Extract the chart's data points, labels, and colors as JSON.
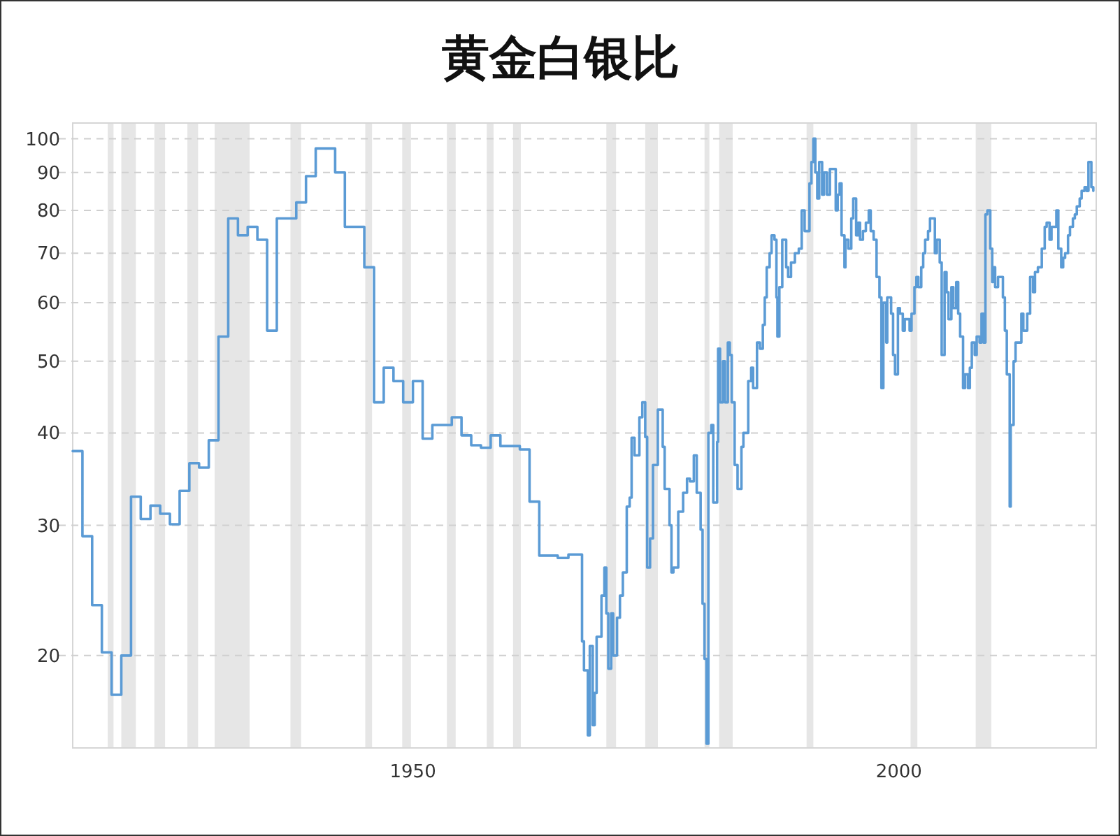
{
  "chart_data": {
    "type": "step",
    "title": "黄金白银比",
    "log": "y",
    "grid": "y",
    "xlim": [
      1915,
      2020.3
    ],
    "xticks": [
      1950,
      2000
    ],
    "ylim": [
      15,
      105
    ],
    "yticks": [
      20,
      30,
      40,
      50,
      60,
      70,
      80,
      90,
      100
    ],
    "color": "#5b9bd5",
    "x": [
      1915,
      1916,
      1917,
      1918,
      1919,
      1920,
      1921,
      1922,
      1923,
      1924,
      1925,
      1926,
      1927,
      1928,
      1929,
      1930,
      1931,
      1932,
      1933,
      1934,
      1935,
      1936,
      1938,
      1939,
      1940,
      1942,
      1943,
      1945,
      1946,
      1947,
      1948,
      1949,
      1950,
      1951,
      1952,
      1953,
      1954,
      1955,
      1956,
      1957,
      1958,
      1959,
      1961,
      1962,
      1963,
      1964.9,
      1966.0,
      1967.4,
      1967.6,
      1968.0,
      1968.2,
      1968.5,
      1968.7,
      1968.9,
      1969.4,
      1969.7,
      1969.9,
      1970.1,
      1970.4,
      1970.6,
      1971.0,
      1971.3,
      1971.6,
      1972.0,
      1972.3,
      1972.5,
      1972.8,
      1973.3,
      1973.6,
      1973.9,
      1974.1,
      1974.4,
      1974.7,
      1975.2,
      1975.7,
      1975.9,
      1976.4,
      1976.6,
      1976.8,
      1977.3,
      1977.8,
      1978.2,
      1978.5,
      1978.9,
      1979.2,
      1979.6,
      1979.8,
      1980.0,
      1980.2,
      1980.4,
      1980.7,
      1980.9,
      1981.3,
      1981.4,
      1981.6,
      1981.9,
      1982.1,
      1982.4,
      1982.6,
      1982.8,
      1983.1,
      1983.4,
      1983.8,
      1984.0,
      1984.5,
      1984.8,
      1985.0,
      1985.4,
      1985.7,
      1986.0,
      1986.2,
      1986.4,
      1986.7,
      1986.9,
      1987.2,
      1987.4,
      1987.5,
      1987.7,
      1988.0,
      1988.4,
      1988.6,
      1988.9,
      1989.3,
      1989.7,
      1990.0,
      1990.3,
      1990.8,
      1991.0,
      1991.2,
      1991.4,
      1991.6,
      1991.8,
      1992.1,
      1992.3,
      1992.6,
      1992.9,
      1993.3,
      1993.5,
      1993.7,
      1993.9,
      1994.1,
      1994.4,
      1994.5,
      1994.8,
      1995.1,
      1995.3,
      1995.6,
      1995.8,
      1996.0,
      1996.3,
      1996.6,
      1996.9,
      1997.1,
      1997.4,
      1997.7,
      1998.0,
      1998.2,
      1998.4,
      1998.7,
      1998.8,
      1999.2,
      1999.4,
      1999.6,
      1999.9,
      2000.1,
      2000.4,
      2000.6,
      2001.1,
      2001.3,
      2001.6,
      2001.8,
      2002.0,
      2002.3,
      2002.5,
      2002.7,
      2003.0,
      2003.2,
      2003.7,
      2003.9,
      2004.2,
      2004.4,
      2004.7,
      2004.9,
      2005.1,
      2005.4,
      2005.6,
      2005.9,
      2006.1,
      2006.3,
      2006.6,
      2006.8,
      2007.1,
      2007.3,
      2007.5,
      2007.8,
      2008.0,
      2008.3,
      2008.5,
      2008.7,
      2008.9,
      2009.1,
      2009.4,
      2009.6,
      2009.7,
      2009.9,
      2010.2,
      2010.7,
      2010.9,
      2011.1,
      2011.4,
      2011.5,
      2011.8,
      2012.0,
      2012.6,
      2012.8,
      2013.2,
      2013.5,
      2013.8,
      2014.0,
      2014.3,
      2014.7,
      2015.0,
      2015.2,
      2015.5,
      2015.7,
      2016.2,
      2016.4,
      2016.7,
      2016.9,
      2017.1,
      2017.4,
      2017.6,
      2017.9,
      2018.1,
      2018.3,
      2018.6,
      2018.8,
      2019.1,
      2019.3,
      2019.5,
      2019.8,
      2020.0
    ],
    "values": [
      37.8,
      29.0,
      23.4,
      20.2,
      17.7,
      20.0,
      32.8,
      30.6,
      31.9,
      31.1,
      30.1,
      33.4,
      36.4,
      35.9,
      39.1,
      54,
      78,
      74,
      76,
      73,
      55,
      78,
      82,
      89,
      97,
      90,
      76,
      67,
      44,
      49,
      47,
      44,
      47,
      39.3,
      41,
      41,
      42,
      39.7,
      38.5,
      38.2,
      39.7,
      38.4,
      38.0,
      32.3,
      27.3,
      27.1,
      27.4,
      20.9,
      19.1,
      15.6,
      20.6,
      16.1,
      17.8,
      21.2,
      24.1,
      26.3,
      22.8,
      19.2,
      22.8,
      20.0,
      22.5,
      24.1,
      25.9,
      31.8,
      32.7,
      39.4,
      37.3,
      42,
      44,
      39.5,
      26.3,
      28.8,
      36.2,
      43,
      38.3,
      33.6,
      30.0,
      25.9,
      26.3,
      31.3,
      33.2,
      34.7,
      34.4,
      37.3,
      33.2,
      29.6,
      23.5,
      19.8,
      15.2,
      40,
      41,
      32.2,
      38.9,
      52,
      44,
      50,
      44,
      53,
      51,
      44,
      36.2,
      33.6,
      38.3,
      40,
      47,
      49,
      46,
      53,
      52,
      56,
      61,
      67,
      70,
      74,
      73,
      61,
      54,
      63,
      73,
      67,
      65,
      68,
      70,
      71,
      80,
      75,
      87,
      93,
      100,
      90,
      83,
      93,
      84,
      90,
      84,
      91,
      91,
      80,
      84,
      87,
      74,
      67,
      73,
      71,
      78,
      83,
      74,
      77,
      73,
      75,
      77,
      80,
      75,
      73,
      65,
      61,
      46,
      60,
      53,
      61,
      58,
      51,
      48,
      59,
      58,
      55,
      57,
      55,
      58,
      63,
      65,
      63,
      67,
      70,
      73,
      75,
      78,
      70,
      73,
      68,
      51,
      66,
      62,
      57,
      63,
      59,
      64,
      58,
      54,
      46,
      48,
      46,
      49,
      53,
      51,
      54,
      53,
      58,
      53,
      79,
      80,
      71,
      64,
      67,
      63,
      65,
      61,
      55,
      48,
      31.8,
      41,
      50,
      53,
      58,
      55,
      58,
      65,
      62,
      66,
      67,
      71,
      76,
      77,
      73,
      76,
      80,
      71,
      67,
      69,
      70,
      74,
      76,
      78,
      79,
      81,
      83,
      85,
      86,
      85,
      93,
      86,
      85
    ],
    "bands": [
      {
        "axis": "x",
        "from": 1918.6,
        "to": 1919.2,
        "color": "#e6e6e6"
      },
      {
        "axis": "x",
        "from": 1920.0,
        "to": 1921.5,
        "color": "#e6e6e6"
      },
      {
        "axis": "x",
        "from": 1923.4,
        "to": 1924.5,
        "color": "#e6e6e6"
      },
      {
        "axis": "x",
        "from": 1926.8,
        "to": 1927.9,
        "color": "#e6e6e6"
      },
      {
        "axis": "x",
        "from": 1929.6,
        "to": 1933.2,
        "color": "#e6e6e6"
      },
      {
        "axis": "x",
        "from": 1937.4,
        "to": 1938.5,
        "color": "#e6e6e6"
      },
      {
        "axis": "x",
        "from": 1945.1,
        "to": 1945.8,
        "color": "#e6e6e6"
      },
      {
        "axis": "x",
        "from": 1948.9,
        "to": 1949.8,
        "color": "#e6e6e6"
      },
      {
        "axis": "x",
        "from": 1953.5,
        "to": 1954.4,
        "color": "#e6e6e6"
      },
      {
        "axis": "x",
        "from": 1957.6,
        "to": 1958.3,
        "color": "#e6e6e6"
      },
      {
        "axis": "x",
        "from": 1960.3,
        "to": 1961.1,
        "color": "#e6e6e6"
      },
      {
        "axis": "x",
        "from": 1969.9,
        "to": 1970.9,
        "color": "#e6e6e6"
      },
      {
        "axis": "x",
        "from": 1973.9,
        "to": 1975.2,
        "color": "#e6e6e6"
      },
      {
        "axis": "x",
        "from": 1980.0,
        "to": 1980.5,
        "color": "#e6e6e6"
      },
      {
        "axis": "x",
        "from": 1981.5,
        "to": 1982.9,
        "color": "#e6e6e6"
      },
      {
        "axis": "x",
        "from": 1990.5,
        "to": 1991.2,
        "color": "#e6e6e6"
      },
      {
        "axis": "x",
        "from": 2001.2,
        "to": 2001.9,
        "color": "#e6e6e6"
      },
      {
        "axis": "x",
        "from": 2007.9,
        "to": 2009.5,
        "color": "#e6e6e6"
      }
    ]
  }
}
